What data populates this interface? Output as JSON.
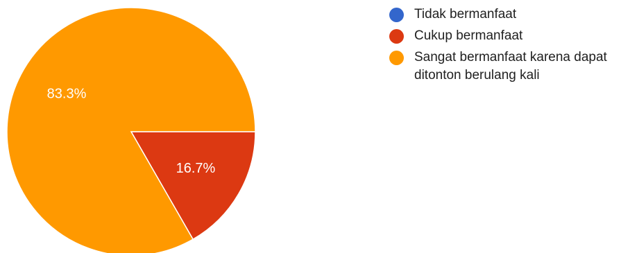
{
  "chart_data": {
    "type": "pie",
    "title": "",
    "labels": [
      "Tidak bermanfaat",
      "Cukup bermanfaat",
      "Sangat bermanfaat karena dapat ditonton berulang kali"
    ],
    "values": [
      0,
      16.7,
      83.3
    ],
    "data_labels": [
      "",
      "16.7%",
      "83.3%"
    ],
    "colors": [
      "#3366cc",
      "#dc3912",
      "#ff9900"
    ],
    "legend": {
      "position": "right",
      "items": [
        {
          "label": "Tidak bermanfaat",
          "color": "#3366cc"
        },
        {
          "label": "Cukup bermanfaat",
          "color": "#dc3912"
        },
        {
          "label": "Sangat bermanfaat karena dapat ditonton berulang kali",
          "color": "#ff9900"
        }
      ]
    }
  }
}
